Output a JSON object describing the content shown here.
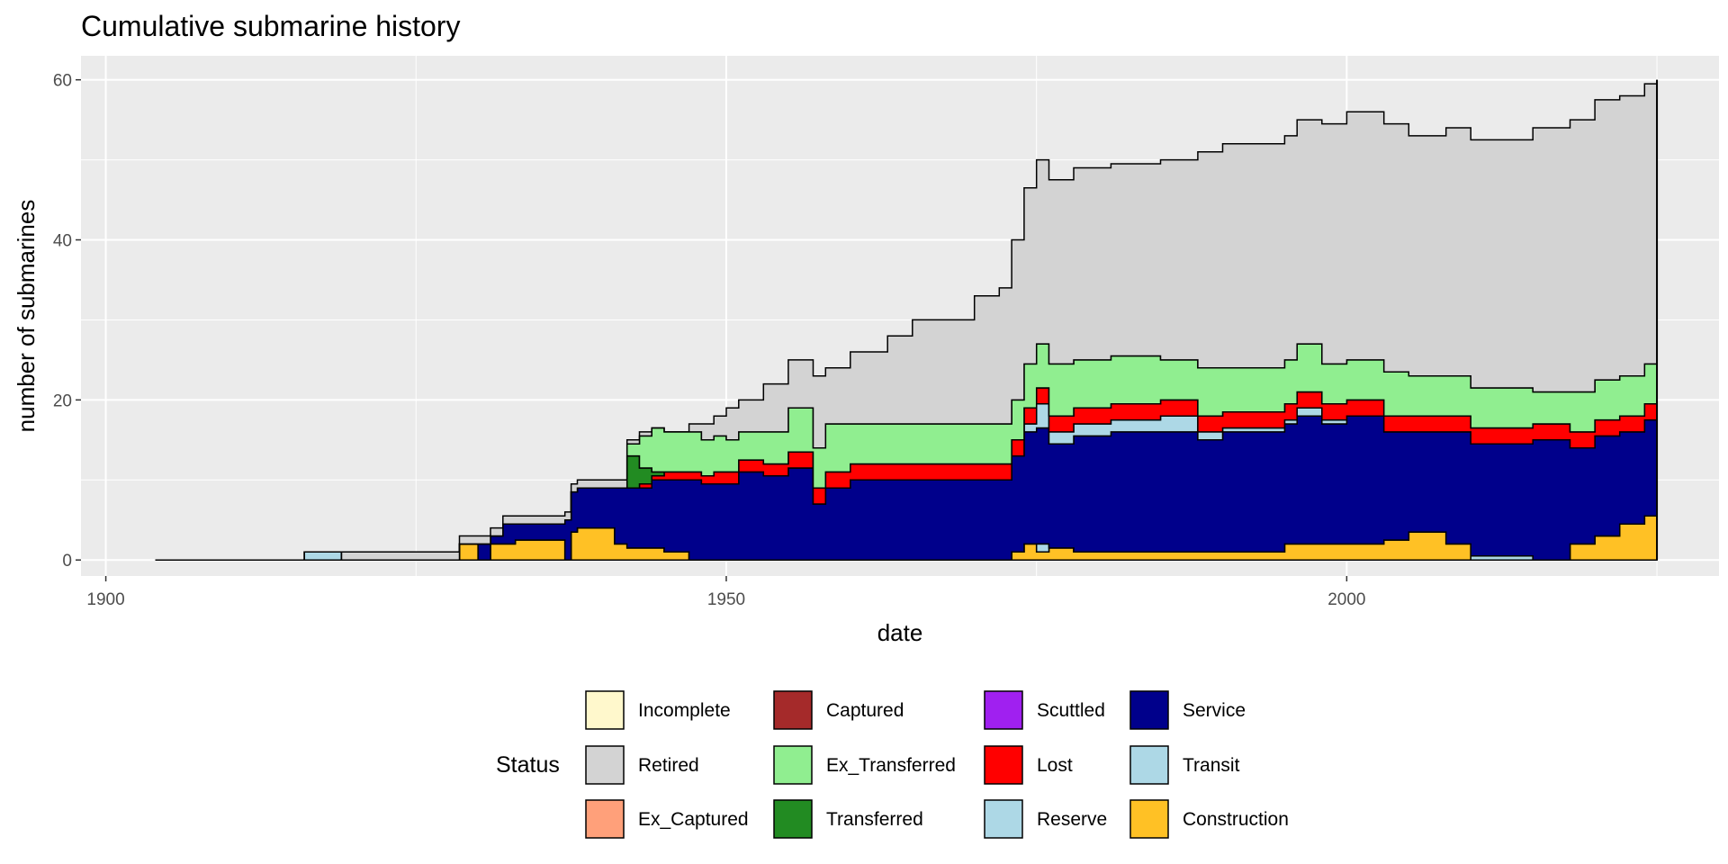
{
  "chart_data": {
    "type": "area",
    "stacked": true,
    "title": "Cumulative submarine history",
    "xlabel": "date",
    "ylabel": "number of submarines",
    "xlim": [
      1898,
      2030
    ],
    "ylim": [
      -2,
      63
    ],
    "x_ticks": [
      1900,
      1950,
      2000
    ],
    "y_ticks": [
      0,
      20,
      40,
      60
    ],
    "grid": true,
    "legend": {
      "title": "Status",
      "position": "bottom",
      "entries": [
        {
          "label": "Incomplete",
          "color": "#FFF8CC"
        },
        {
          "label": "Retired",
          "color": "#D3D3D3"
        },
        {
          "label": "Ex_Captured",
          "color": "#FFA07A"
        },
        {
          "label": "Captured",
          "color": "#A52A2A"
        },
        {
          "label": "Ex_Transferred",
          "color": "#90EE90"
        },
        {
          "label": "Transferred",
          "color": "#228B22"
        },
        {
          "label": "Scuttled",
          "color": "#A020F0"
        },
        {
          "label": "Lost",
          "color": "#FF0000"
        },
        {
          "label": "Reserve",
          "color": "#ADD8E6"
        },
        {
          "label": "Service",
          "color": "#00008B"
        },
        {
          "label": "Transit",
          "color": "#ADD8E6"
        },
        {
          "label": "Construction",
          "color": "#FFC125"
        }
      ]
    },
    "x": [
      1904,
      1916,
      1919,
      1926,
      1928.5,
      1930,
      1931,
      1932,
      1933,
      1937,
      1937.5,
      1938,
      1941,
      1942,
      1943,
      1944,
      1945,
      1947,
      1948,
      1949,
      1950,
      1951,
      1953,
      1955,
      1957,
      1958,
      1960,
      1963,
      1965,
      1970,
      1972,
      1973,
      1974,
      1975,
      1976,
      1978,
      1981,
      1985,
      1988,
      1990,
      1995,
      1996,
      1998,
      2000,
      2003,
      2005,
      2008,
      2010,
      2015,
      2018,
      2020,
      2022,
      2024,
      2025
    ],
    "series": [
      {
        "name": "Construction",
        "color": "#FFC125",
        "values": [
          0,
          0,
          0,
          0,
          2,
          0,
          2,
          2,
          2.5,
          0,
          3.5,
          4,
          2,
          1.5,
          1.5,
          1.5,
          1,
          0,
          0,
          0,
          0,
          0,
          0,
          0,
          0,
          0,
          0,
          0,
          0,
          0,
          0,
          1,
          2,
          1,
          1.5,
          1,
          1,
          1,
          1,
          1,
          2,
          2,
          2,
          2,
          2.5,
          3.5,
          2,
          0,
          0,
          2,
          3,
          4.5,
          5.5,
          6
        ]
      },
      {
        "name": "Transit",
        "color": "#ADD8E6",
        "values": [
          0,
          1,
          0,
          0,
          0,
          0,
          0,
          0,
          0,
          0,
          0,
          0,
          0,
          0,
          0,
          0,
          0,
          0,
          0,
          0,
          0,
          0,
          0,
          0,
          0,
          0,
          0,
          0,
          0,
          0,
          0,
          0,
          0,
          1,
          0,
          0,
          0,
          0,
          0,
          0,
          0,
          0,
          0,
          0,
          0,
          0,
          0,
          0.5,
          0,
          0,
          0,
          0,
          0,
          0
        ]
      },
      {
        "name": "Service",
        "color": "#00008B",
        "values": [
          0,
          0,
          0,
          0,
          0,
          2,
          1,
          2.5,
          2,
          5,
          5,
          5,
          7,
          7.5,
          7.5,
          8.5,
          9,
          10,
          9.5,
          9.5,
          9.5,
          11,
          10.5,
          11.5,
          7,
          9,
          10,
          10,
          10,
          10,
          10,
          12,
          14,
          14.5,
          13,
          14.5,
          15,
          15,
          14,
          15,
          15,
          16,
          15,
          16,
          13.5,
          12.5,
          14,
          14,
          15,
          12,
          12.5,
          11.5,
          12,
          12
        ]
      },
      {
        "name": "Reserve",
        "color": "#ADD8E6",
        "values": [
          0,
          0,
          0,
          0,
          0,
          0,
          0,
          0,
          0,
          0,
          0,
          0,
          0,
          0,
          0,
          0,
          0,
          0,
          0,
          0,
          0,
          0,
          0,
          0,
          0,
          0,
          0,
          0,
          0,
          0,
          0,
          0,
          1,
          3,
          1.5,
          1.5,
          1.5,
          2,
          1,
          0.5,
          0.5,
          1,
          0.5,
          0,
          0,
          0,
          0,
          0,
          0,
          0,
          0,
          0,
          0,
          0
        ]
      },
      {
        "name": "Lost",
        "color": "#FF0000",
        "values": [
          0,
          0,
          0,
          0,
          0,
          0,
          0,
          0,
          0,
          0,
          0,
          0,
          0,
          0,
          0.5,
          0.5,
          1,
          1,
          1,
          1.5,
          1.5,
          1.5,
          1.5,
          2,
          2,
          2,
          2,
          2,
          2,
          2,
          2,
          2,
          2,
          2,
          2,
          2,
          2,
          2,
          2,
          2,
          2,
          2,
          2,
          2,
          2,
          2,
          2,
          2,
          2,
          2,
          2,
          2,
          2,
          2
        ]
      },
      {
        "name": "Transferred",
        "color": "#228B22",
        "values": [
          0,
          0,
          0,
          0,
          0,
          0,
          0,
          0,
          0,
          0,
          0,
          0,
          0,
          4,
          2,
          0.5,
          0,
          0,
          0,
          0,
          0,
          0,
          0,
          0,
          0,
          0,
          0,
          0,
          0,
          0,
          0,
          0,
          0,
          0,
          0,
          0,
          0,
          0,
          0,
          0,
          0,
          0,
          0,
          0,
          0,
          0,
          0,
          0,
          0,
          0,
          0,
          0,
          0,
          0
        ]
      },
      {
        "name": "Ex_Transferred",
        "color": "#90EE90",
        "values": [
          0,
          0,
          0,
          0,
          0,
          0,
          0,
          0,
          0,
          0,
          0,
          0,
          0,
          1.5,
          4,
          5.5,
          5,
          5,
          4.5,
          4.5,
          4,
          3.5,
          4,
          5.5,
          5,
          6,
          5,
          5,
          5,
          5,
          5,
          5,
          5.5,
          5.5,
          6.5,
          6,
          6,
          5,
          6,
          5.5,
          5.5,
          6,
          5,
          5,
          5.5,
          5,
          5,
          5,
          4,
          5,
          5,
          5,
          5,
          5
        ]
      },
      {
        "name": "Retired",
        "color": "#D3D3D3",
        "values": [
          0,
          0,
          1,
          1,
          1,
          1,
          1,
          1,
          1,
          1,
          1,
          1,
          1,
          0.5,
          0.5,
          0,
          0,
          1,
          2,
          2.5,
          4,
          4,
          6,
          6,
          9,
          7,
          9,
          11,
          13,
          16,
          17,
          20,
          22,
          23,
          23,
          24,
          24,
          25,
          27,
          28,
          28,
          28,
          30,
          31,
          31,
          30,
          31,
          31,
          33,
          34,
          35,
          35,
          35,
          35
        ]
      }
    ]
  }
}
